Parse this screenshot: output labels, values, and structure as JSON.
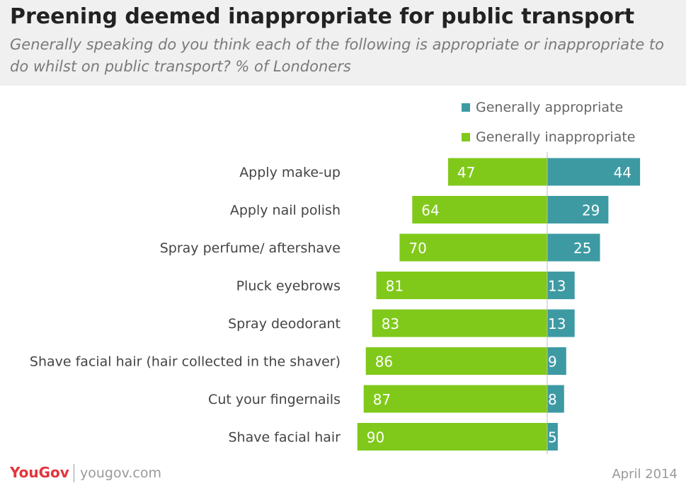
{
  "header": {
    "title": "Preening deemed inappropriate for public transport",
    "subtitle": "Generally speaking do you think each of the following is appropriate or inappropriate to do whilst on public transport? % of Londoners"
  },
  "legend": {
    "appropriate_label": "Generally appropriate",
    "inappropriate_label": "Generally inappropriate"
  },
  "colors": {
    "appropriate": "#3d9aa3",
    "inappropriate": "#80c91a",
    "header_bg": "#f0f0f0",
    "brand": "#e3343b"
  },
  "chart_data": {
    "type": "bar",
    "orientation": "horizontal-diverging",
    "categories": [
      "Apply make-up",
      "Apply nail polish",
      "Spray perfume/ aftershave",
      "Pluck eyebrows",
      "Spray deodorant",
      "Shave facial hair (hair collected in the shaver)",
      "Cut your fingernails",
      "Shave facial hair"
    ],
    "series": [
      {
        "name": "Generally appropriate",
        "values": [
          44,
          29,
          25,
          13,
          13,
          9,
          8,
          5
        ]
      },
      {
        "name": "Generally inappropriate",
        "values": [
          47,
          64,
          70,
          81,
          83,
          86,
          87,
          90
        ]
      }
    ],
    "legend_position": "top-right",
    "grid": false
  },
  "footer": {
    "brand": "YouGov",
    "site": "yougov.com",
    "date": "April 2014"
  }
}
